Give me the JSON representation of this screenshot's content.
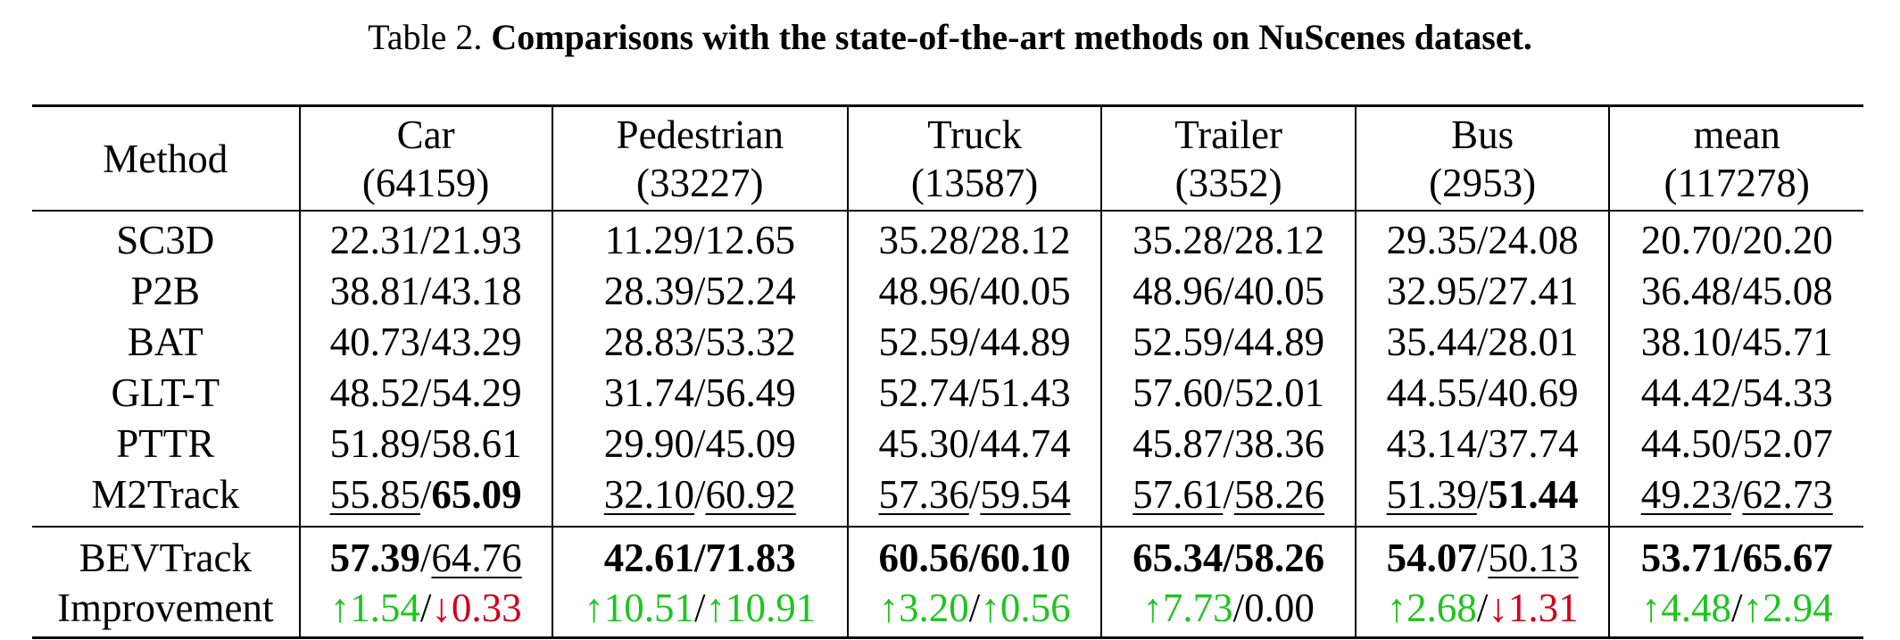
{
  "caption": {
    "label": "Table 2.",
    "text": "Comparisons with the state-of-the-art methods on NuScenes dataset."
  },
  "table": {
    "method_header": "Method",
    "columns": [
      {
        "name": "Car",
        "count": "(64159)"
      },
      {
        "name": "Pedestrian",
        "count": "(33227)"
      },
      {
        "name": "Truck",
        "count": "(13587)"
      },
      {
        "name": "Trailer",
        "count": "(3352)"
      },
      {
        "name": "Bus",
        "count": "(2953)"
      },
      {
        "name": "mean",
        "count": "(117278)"
      }
    ],
    "baselines": [
      {
        "method": "SC3D",
        "cells": [
          [
            {
              "t": "22.31"
            },
            {
              "t": "/"
            },
            {
              "t": "21.93"
            }
          ],
          [
            {
              "t": "11.29"
            },
            {
              "t": "/"
            },
            {
              "t": "12.65"
            }
          ],
          [
            {
              "t": "35.28"
            },
            {
              "t": "/"
            },
            {
              "t": "28.12"
            }
          ],
          [
            {
              "t": "35.28"
            },
            {
              "t": "/"
            },
            {
              "t": "28.12"
            }
          ],
          [
            {
              "t": "29.35"
            },
            {
              "t": "/"
            },
            {
              "t": "24.08"
            }
          ],
          [
            {
              "t": "20.70"
            },
            {
              "t": "/"
            },
            {
              "t": "20.20"
            }
          ]
        ]
      },
      {
        "method": "P2B",
        "cells": [
          [
            {
              "t": "38.81"
            },
            {
              "t": "/"
            },
            {
              "t": "43.18"
            }
          ],
          [
            {
              "t": "28.39"
            },
            {
              "t": "/"
            },
            {
              "t": "52.24"
            }
          ],
          [
            {
              "t": "48.96"
            },
            {
              "t": "/"
            },
            {
              "t": "40.05"
            }
          ],
          [
            {
              "t": "48.96"
            },
            {
              "t": "/"
            },
            {
              "t": "40.05"
            }
          ],
          [
            {
              "t": "32.95"
            },
            {
              "t": "/"
            },
            {
              "t": "27.41"
            }
          ],
          [
            {
              "t": "36.48"
            },
            {
              "t": "/"
            },
            {
              "t": "45.08"
            }
          ]
        ]
      },
      {
        "method": "BAT",
        "cells": [
          [
            {
              "t": "40.73"
            },
            {
              "t": "/"
            },
            {
              "t": "43.29"
            }
          ],
          [
            {
              "t": "28.83"
            },
            {
              "t": "/"
            },
            {
              "t": "53.32"
            }
          ],
          [
            {
              "t": "52.59"
            },
            {
              "t": "/"
            },
            {
              "t": "44.89"
            }
          ],
          [
            {
              "t": "52.59"
            },
            {
              "t": "/"
            },
            {
              "t": "44.89"
            }
          ],
          [
            {
              "t": "35.44"
            },
            {
              "t": "/"
            },
            {
              "t": "28.01"
            }
          ],
          [
            {
              "t": "38.10"
            },
            {
              "t": "/"
            },
            {
              "t": "45.71"
            }
          ]
        ]
      },
      {
        "method": "GLT-T",
        "cells": [
          [
            {
              "t": "48.52"
            },
            {
              "t": "/"
            },
            {
              "t": "54.29"
            }
          ],
          [
            {
              "t": "31.74"
            },
            {
              "t": "/"
            },
            {
              "t": "56.49"
            }
          ],
          [
            {
              "t": "52.74"
            },
            {
              "t": "/"
            },
            {
              "t": "51.43"
            }
          ],
          [
            {
              "t": "57.60"
            },
            {
              "t": "/"
            },
            {
              "t": "52.01"
            }
          ],
          [
            {
              "t": "44.55"
            },
            {
              "t": "/"
            },
            {
              "t": "40.69"
            }
          ],
          [
            {
              "t": "44.42"
            },
            {
              "t": "/"
            },
            {
              "t": "54.33"
            }
          ]
        ]
      },
      {
        "method": "PTTR",
        "cells": [
          [
            {
              "t": "51.89"
            },
            {
              "t": "/"
            },
            {
              "t": "58.61"
            }
          ],
          [
            {
              "t": "29.90"
            },
            {
              "t": "/"
            },
            {
              "t": "45.09"
            }
          ],
          [
            {
              "t": "45.30"
            },
            {
              "t": "/"
            },
            {
              "t": "44.74"
            }
          ],
          [
            {
              "t": "45.87"
            },
            {
              "t": "/"
            },
            {
              "t": "38.36"
            }
          ],
          [
            {
              "t": "43.14"
            },
            {
              "t": "/"
            },
            {
              "t": "37.74"
            }
          ],
          [
            {
              "t": "44.50"
            },
            {
              "t": "/"
            },
            {
              "t": "52.07"
            }
          ]
        ]
      },
      {
        "method": "M2Track",
        "cells": [
          [
            {
              "t": "55.85",
              "s": "u"
            },
            {
              "t": "/"
            },
            {
              "t": "65.09",
              "s": "b"
            }
          ],
          [
            {
              "t": "32.10",
              "s": "u"
            },
            {
              "t": "/"
            },
            {
              "t": "60.92",
              "s": "u"
            }
          ],
          [
            {
              "t": "57.36",
              "s": "u"
            },
            {
              "t": "/"
            },
            {
              "t": "59.54",
              "s": "u"
            }
          ],
          [
            {
              "t": "57.61",
              "s": "u"
            },
            {
              "t": "/"
            },
            {
              "t": "58.26",
              "s": "u"
            }
          ],
          [
            {
              "t": "51.39",
              "s": "u"
            },
            {
              "t": "/"
            },
            {
              "t": "51.44",
              "s": "b"
            }
          ],
          [
            {
              "t": "49.23",
              "s": "u"
            },
            {
              "t": "/"
            },
            {
              "t": "62.73",
              "s": "u"
            }
          ]
        ]
      }
    ],
    "ours": [
      {
        "method": "BEVTrack",
        "cells": [
          [
            {
              "t": "57.39",
              "s": "b"
            },
            {
              "t": "/"
            },
            {
              "t": "64.76",
              "s": "u"
            }
          ],
          [
            {
              "t": "42.61/71.83",
              "s": "b"
            }
          ],
          [
            {
              "t": "60.56/60.10",
              "s": "b"
            }
          ],
          [
            {
              "t": "65.34/58.26",
              "s": "b"
            }
          ],
          [
            {
              "t": "54.07",
              "s": "b"
            },
            {
              "t": "/"
            },
            {
              "t": "50.13",
              "s": "u"
            }
          ],
          [
            {
              "t": "53.71/65.67",
              "s": "b"
            }
          ]
        ]
      },
      {
        "method": "Improvement",
        "cells": [
          [
            {
              "t": "↑1.54",
              "s": "up"
            },
            {
              "t": "/"
            },
            {
              "t": "↓0.33",
              "s": "down"
            }
          ],
          [
            {
              "t": "↑10.51",
              "s": "up"
            },
            {
              "t": "/"
            },
            {
              "t": "↑10.91",
              "s": "up"
            }
          ],
          [
            {
              "t": "↑3.20",
              "s": "up"
            },
            {
              "t": "/"
            },
            {
              "t": "↑0.56",
              "s": "up"
            }
          ],
          [
            {
              "t": "↑7.73",
              "s": "up"
            },
            {
              "t": "/"
            },
            {
              "t": "0.00"
            }
          ],
          [
            {
              "t": "↑2.68",
              "s": "up"
            },
            {
              "t": "/"
            },
            {
              "t": "↓1.31",
              "s": "down"
            }
          ],
          [
            {
              "t": "↑4.48",
              "s": "up"
            },
            {
              "t": "/"
            },
            {
              "t": "↑2.94",
              "s": "up"
            }
          ]
        ]
      }
    ],
    "colors": {
      "increase": "#1fc41f",
      "decrease": "#d0021b"
    }
  }
}
